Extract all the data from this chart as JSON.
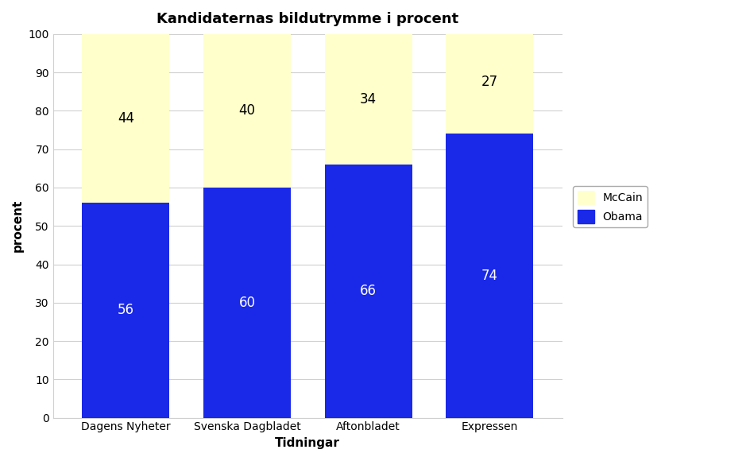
{
  "title": "Kandidaternas bildutrymme i procent",
  "categories": [
    "Dagens Nyheter",
    "Svenska Dagbladet",
    "Aftonbladet",
    "Expressen"
  ],
  "obama_values": [
    56,
    60,
    66,
    74
  ],
  "mccain_values": [
    44,
    40,
    34,
    27
  ],
  "obama_color": "#1a28e8",
  "mccain_color": "#ffffcc",
  "obama_label": "Obama",
  "mccain_label": "McCain",
  "xlabel": "Tidningar",
  "ylabel": "procent",
  "ylim": [
    0,
    100
  ],
  "yticks": [
    0,
    10,
    20,
    30,
    40,
    50,
    60,
    70,
    80,
    90,
    100
  ],
  "bar_width": 0.72,
  "title_fontsize": 13,
  "axis_label_fontsize": 11,
  "tick_fontsize": 10,
  "value_fontsize": 12,
  "background_color": "#ffffff",
  "grid_color": "#d0d0d0",
  "figsize": [
    9.44,
    5.8
  ],
  "dpi": 100
}
